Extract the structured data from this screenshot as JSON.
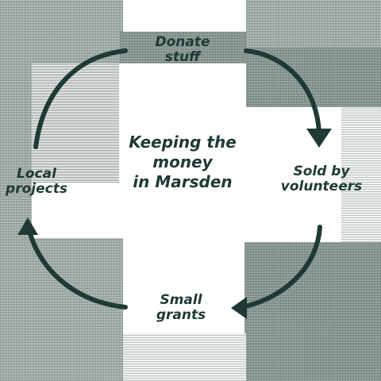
{
  "center_title": [
    "Keeping the",
    "money",
    "in Marsden"
  ],
  "nodes": {
    "top": [
      "Donate",
      "stuff"
    ],
    "right": [
      "Sold by",
      "volunteers"
    ],
    "bottom": [
      "Small",
      "grants"
    ],
    "left": [
      "Local",
      "projects"
    ]
  },
  "colors": {
    "text": "#1f3a35",
    "arrow": "#1f3a35",
    "background": "#ffffff"
  }
}
